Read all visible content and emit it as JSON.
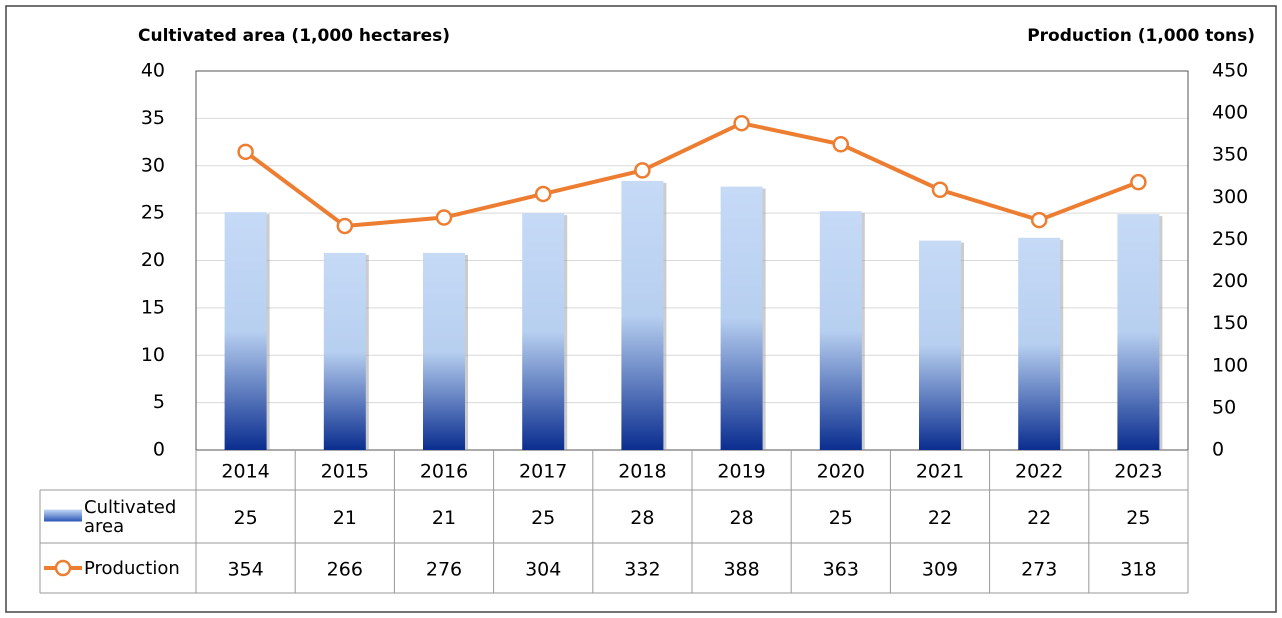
{
  "chart_data": {
    "type": "bar",
    "left_axis_title": "Cultivated area (1,000 hectares)",
    "right_axis_title": "Production (1,000 tons)",
    "categories": [
      "2014",
      "2015",
      "2016",
      "2017",
      "2018",
      "2019",
      "2020",
      "2021",
      "2022",
      "2023"
    ],
    "series": [
      {
        "name": "Cultivated area",
        "type": "bar",
        "color": "#0a2d8f",
        "values": [
          25.1,
          20.8,
          20.8,
          25,
          28.4,
          27.8,
          25.2,
          22.1,
          22.4,
          24.9
        ],
        "value_labels": [
          "25",
          "21",
          "21",
          "25",
          "28",
          "28",
          "25",
          "22",
          "22",
          "25"
        ]
      },
      {
        "name": "Production",
        "type": "line",
        "axis": "y2",
        "color": "#ed7d31",
        "values": [
          354,
          266,
          276,
          304,
          332,
          388,
          363,
          309,
          273,
          318
        ]
      }
    ],
    "ylim": [
      0,
      40
    ],
    "yticks": [
      0,
      5,
      10,
      15,
      20,
      25,
      30,
      35,
      40
    ],
    "y2lim": [
      0,
      450
    ],
    "y2ticks": [
      0,
      50,
      100,
      150,
      200,
      250,
      300,
      350,
      400,
      450
    ],
    "grid": true
  }
}
